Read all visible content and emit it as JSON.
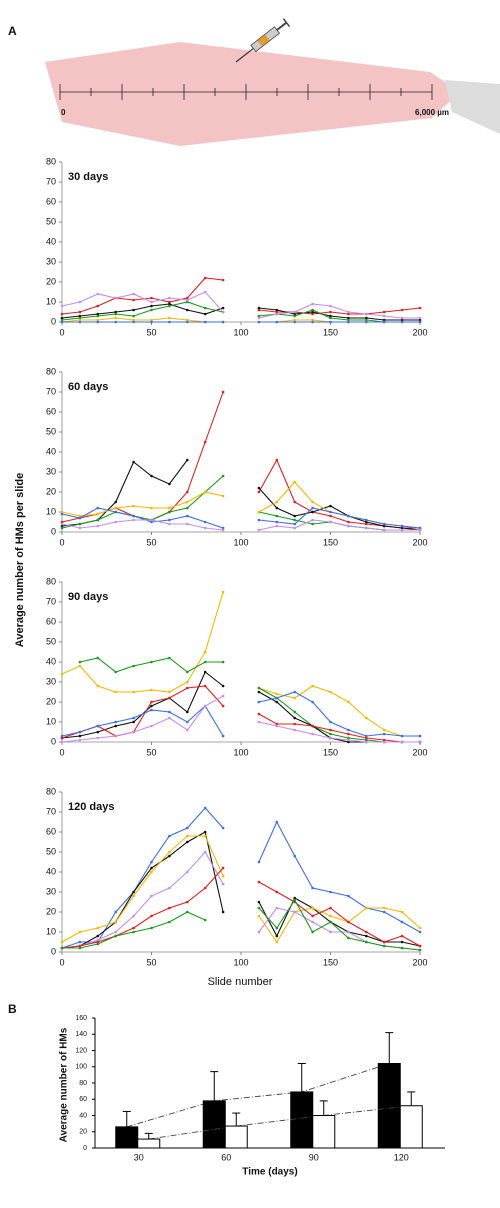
{
  "panel_a": {
    "label": "A",
    "scale_start": "0",
    "scale_end": "6,000 µm"
  },
  "line_axes_labels": {
    "y": "Average number of HMs per slide",
    "x": "Slide number"
  },
  "chart_data": [
    {
      "type": "line",
      "title": "30 days",
      "x": [
        0,
        10,
        20,
        30,
        40,
        50,
        60,
        70,
        80,
        90,
        100,
        110,
        120,
        130,
        140,
        150,
        160,
        170,
        180,
        190,
        200
      ],
      "xlim": [
        0,
        200
      ],
      "xticks": [
        0,
        50,
        100,
        150,
        200
      ],
      "ylim": [
        0,
        80
      ],
      "yticks": [
        0,
        10,
        20,
        30,
        40,
        50,
        60,
        70,
        80
      ],
      "series": [
        {
          "color": "#e02020",
          "values": [
            4,
            5,
            8,
            12,
            11,
            12,
            10,
            12,
            22,
            21,
            null,
            6,
            5,
            5,
            4,
            5,
            4,
            4,
            5,
            6,
            7
          ]
        },
        {
          "color": "#111111",
          "values": [
            2,
            3,
            4,
            5,
            6,
            8,
            9,
            6,
            4,
            7,
            null,
            7,
            6,
            4,
            5,
            3,
            2,
            2,
            1,
            1,
            1
          ]
        },
        {
          "color": "#1a9a1a",
          "values": [
            1,
            2,
            3,
            4,
            3,
            6,
            8,
            10,
            7,
            5,
            null,
            3,
            4,
            3,
            6,
            2,
            1,
            1,
            0,
            0,
            0
          ]
        },
        {
          "color": "#c78cf0",
          "values": [
            8,
            10,
            14,
            12,
            14,
            10,
            12,
            11,
            15,
            5,
            null,
            2,
            4,
            5,
            9,
            8,
            5,
            4,
            3,
            2,
            2
          ]
        },
        {
          "color": "#f5b800",
          "values": [
            0,
            1,
            1,
            2,
            1,
            1,
            2,
            1,
            0,
            0,
            null,
            0,
            0,
            1,
            1,
            0,
            0,
            0,
            0,
            0,
            0
          ]
        },
        {
          "color": "#3a6ee8",
          "values": [
            0,
            0,
            0,
            0,
            0,
            0,
            0,
            0,
            0,
            0,
            null,
            0,
            0,
            0,
            0,
            0,
            0,
            0,
            0,
            0,
            0
          ]
        }
      ]
    },
    {
      "type": "line",
      "title": "60 days",
      "x": [
        0,
        10,
        20,
        30,
        40,
        50,
        60,
        70,
        80,
        90,
        100,
        110,
        120,
        130,
        140,
        150,
        160,
        170,
        180,
        190,
        200
      ],
      "xlim": [
        0,
        200
      ],
      "xticks": [
        0,
        50,
        100,
        150,
        200
      ],
      "ylim": [
        0,
        80
      ],
      "yticks": [
        0,
        10,
        20,
        30,
        40,
        50,
        60,
        70,
        80
      ],
      "series": [
        {
          "color": "#e02020",
          "values": [
            5,
            7,
            9,
            12,
            8,
            6,
            10,
            20,
            45,
            70,
            null,
            20,
            36,
            15,
            10,
            8,
            5,
            4,
            3,
            2,
            2
          ]
        },
        {
          "color": "#111111",
          "values": [
            3,
            4,
            6,
            15,
            35,
            28,
            24,
            36,
            null,
            null,
            null,
            22,
            12,
            8,
            10,
            13,
            8,
            5,
            3,
            2,
            1
          ]
        },
        {
          "color": "#1a9a1a",
          "values": [
            2,
            4,
            6,
            10,
            8,
            6,
            10,
            12,
            20,
            28,
            null,
            10,
            8,
            6,
            4,
            5,
            3,
            2,
            1,
            1,
            1
          ]
        },
        {
          "color": "#f5b800",
          "values": [
            10,
            8,
            9,
            12,
            13,
            12,
            12,
            15,
            20,
            18,
            null,
            10,
            15,
            25,
            15,
            10,
            8,
            6,
            4,
            3,
            2
          ]
        },
        {
          "color": "#3a6ee8",
          "values": [
            9,
            7,
            12,
            10,
            8,
            5,
            6,
            8,
            5,
            2,
            null,
            6,
            5,
            4,
            12,
            10,
            8,
            6,
            4,
            3,
            2
          ]
        },
        {
          "color": "#c78cf0",
          "values": [
            4,
            2,
            3,
            5,
            6,
            6,
            4,
            4,
            2,
            1,
            null,
            1,
            3,
            2,
            6,
            5,
            3,
            2,
            1,
            1,
            1
          ]
        }
      ]
    },
    {
      "type": "line",
      "title": "90 days",
      "x": [
        0,
        10,
        20,
        30,
        40,
        50,
        60,
        70,
        80,
        90,
        100,
        110,
        120,
        130,
        140,
        150,
        160,
        170,
        180,
        190,
        200
      ],
      "xlim": [
        0,
        200
      ],
      "xticks": [
        0,
        50,
        100,
        150,
        200
      ],
      "ylim": [
        0,
        80
      ],
      "yticks": [
        0,
        10,
        20,
        30,
        40,
        50,
        60,
        70,
        80
      ],
      "series": [
        {
          "color": "#f5b800",
          "values": [
            34,
            38,
            28,
            25,
            25,
            26,
            25,
            30,
            45,
            75,
            null,
            27,
            24,
            22,
            28,
            25,
            20,
            12,
            6,
            3,
            3
          ]
        },
        {
          "color": "#1a9a1a",
          "values": [
            null,
            40,
            42,
            35,
            38,
            40,
            42,
            35,
            40,
            40,
            null,
            27,
            22,
            15,
            8,
            4,
            2,
            1,
            0,
            0,
            0
          ]
        },
        {
          "color": "#111111",
          "values": [
            2,
            3,
            5,
            8,
            10,
            18,
            22,
            15,
            35,
            28,
            null,
            25,
            20,
            12,
            8,
            2,
            0,
            0,
            0,
            0,
            0
          ]
        },
        {
          "color": "#e02020",
          "values": [
            2,
            5,
            8,
            3,
            5,
            20,
            22,
            27,
            28,
            18,
            null,
            14,
            9,
            9,
            8,
            6,
            4,
            2,
            1,
            0,
            0
          ]
        },
        {
          "color": "#3a6ee8",
          "values": [
            3,
            5,
            8,
            10,
            12,
            16,
            15,
            10,
            18,
            3,
            null,
            20,
            22,
            25,
            20,
            10,
            6,
            3,
            4,
            3,
            3
          ]
        },
        {
          "color": "#c78cf0",
          "values": [
            0,
            1,
            2,
            3,
            5,
            8,
            12,
            6,
            18,
            23,
            null,
            10,
            8,
            6,
            4,
            2,
            1,
            0,
            0,
            0,
            0
          ]
        }
      ]
    },
    {
      "type": "line",
      "title": "120 days",
      "x": [
        0,
        10,
        20,
        30,
        40,
        50,
        60,
        70,
        80,
        90,
        100,
        110,
        120,
        130,
        140,
        150,
        160,
        170,
        180,
        190,
        200
      ],
      "xlim": [
        0,
        200
      ],
      "xticks": [
        0,
        50,
        100,
        150,
        200
      ],
      "ylim": [
        0,
        80
      ],
      "yticks": [
        0,
        10,
        20,
        30,
        40,
        50,
        60,
        70,
        80
      ],
      "series": [
        {
          "color": "#3a6ee8",
          "values": [
            2,
            5,
            5,
            20,
            30,
            45,
            58,
            62,
            72,
            62,
            null,
            45,
            65,
            48,
            32,
            30,
            28,
            22,
            20,
            15,
            10
          ]
        },
        {
          "color": "#111111",
          "values": [
            2,
            3,
            8,
            15,
            30,
            42,
            48,
            55,
            60,
            20,
            null,
            25,
            8,
            27,
            22,
            15,
            10,
            8,
            5,
            5,
            3
          ]
        },
        {
          "color": "#f5b800",
          "values": [
            5,
            10,
            12,
            15,
            28,
            40,
            50,
            58,
            58,
            38,
            null,
            18,
            5,
            20,
            22,
            18,
            15,
            22,
            22,
            20,
            12
          ]
        },
        {
          "color": "#c78cf0",
          "values": [
            2,
            3,
            6,
            10,
            18,
            28,
            32,
            40,
            50,
            34,
            null,
            10,
            22,
            20,
            15,
            10,
            10,
            5,
            3,
            2,
            1
          ]
        },
        {
          "color": "#e02020",
          "values": [
            2,
            3,
            5,
            8,
            12,
            18,
            22,
            25,
            32,
            42,
            null,
            35,
            30,
            25,
            18,
            22,
            15,
            10,
            5,
            8,
            3
          ]
        },
        {
          "color": "#1a9a1a",
          "values": [
            2,
            2,
            4,
            8,
            10,
            12,
            15,
            20,
            16,
            null,
            null,
            22,
            12,
            26,
            10,
            15,
            7,
            5,
            3,
            2,
            1
          ]
        }
      ]
    },
    {
      "type": "bar",
      "panel_label": "B",
      "ylabel": "Average number of  HMs",
      "xlabel": "Time (days)",
      "categories": [
        "30",
        "60",
        "90",
        "120"
      ],
      "ylim": [
        0,
        160
      ],
      "yticks": [
        0,
        20,
        40,
        60,
        80,
        100,
        120,
        140,
        160
      ],
      "series": [
        {
          "color": "#000000",
          "values": [
            26,
            58,
            69,
            104
          ],
          "errors": [
            19,
            36,
            35,
            38
          ]
        },
        {
          "color": "#ffffff",
          "values": [
            11,
            27,
            40,
            52
          ],
          "errors": [
            7,
            16,
            18,
            17
          ]
        }
      ]
    }
  ]
}
